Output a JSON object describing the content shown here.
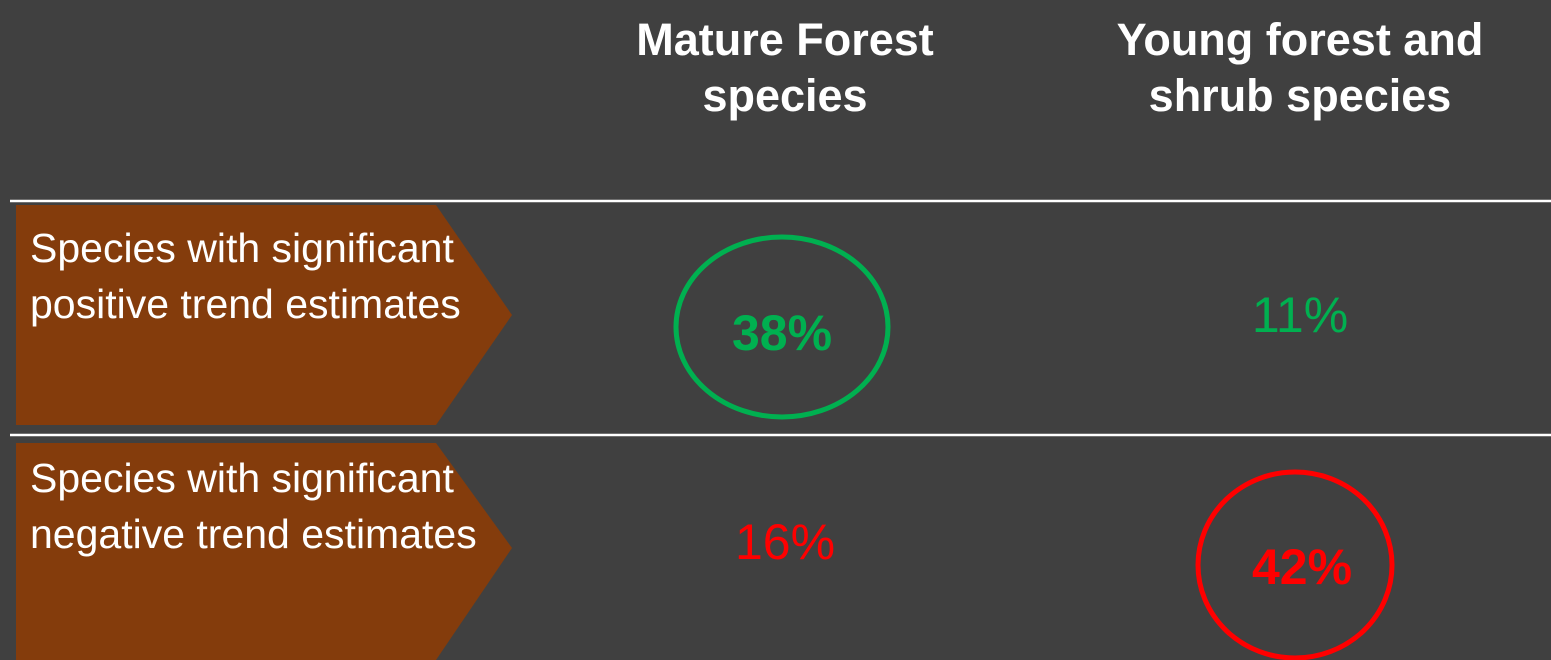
{
  "table": {
    "columns": [
      "Mature Forest species",
      "Young forest and shrub species"
    ],
    "rows": [
      {
        "label": "Species with significant positive trend estimates",
        "cells": [
          "38%",
          "11%"
        ]
      },
      {
        "label": "Species with significant negative trend estimates",
        "cells": [
          "16%",
          "42%"
        ]
      }
    ]
  }
}
